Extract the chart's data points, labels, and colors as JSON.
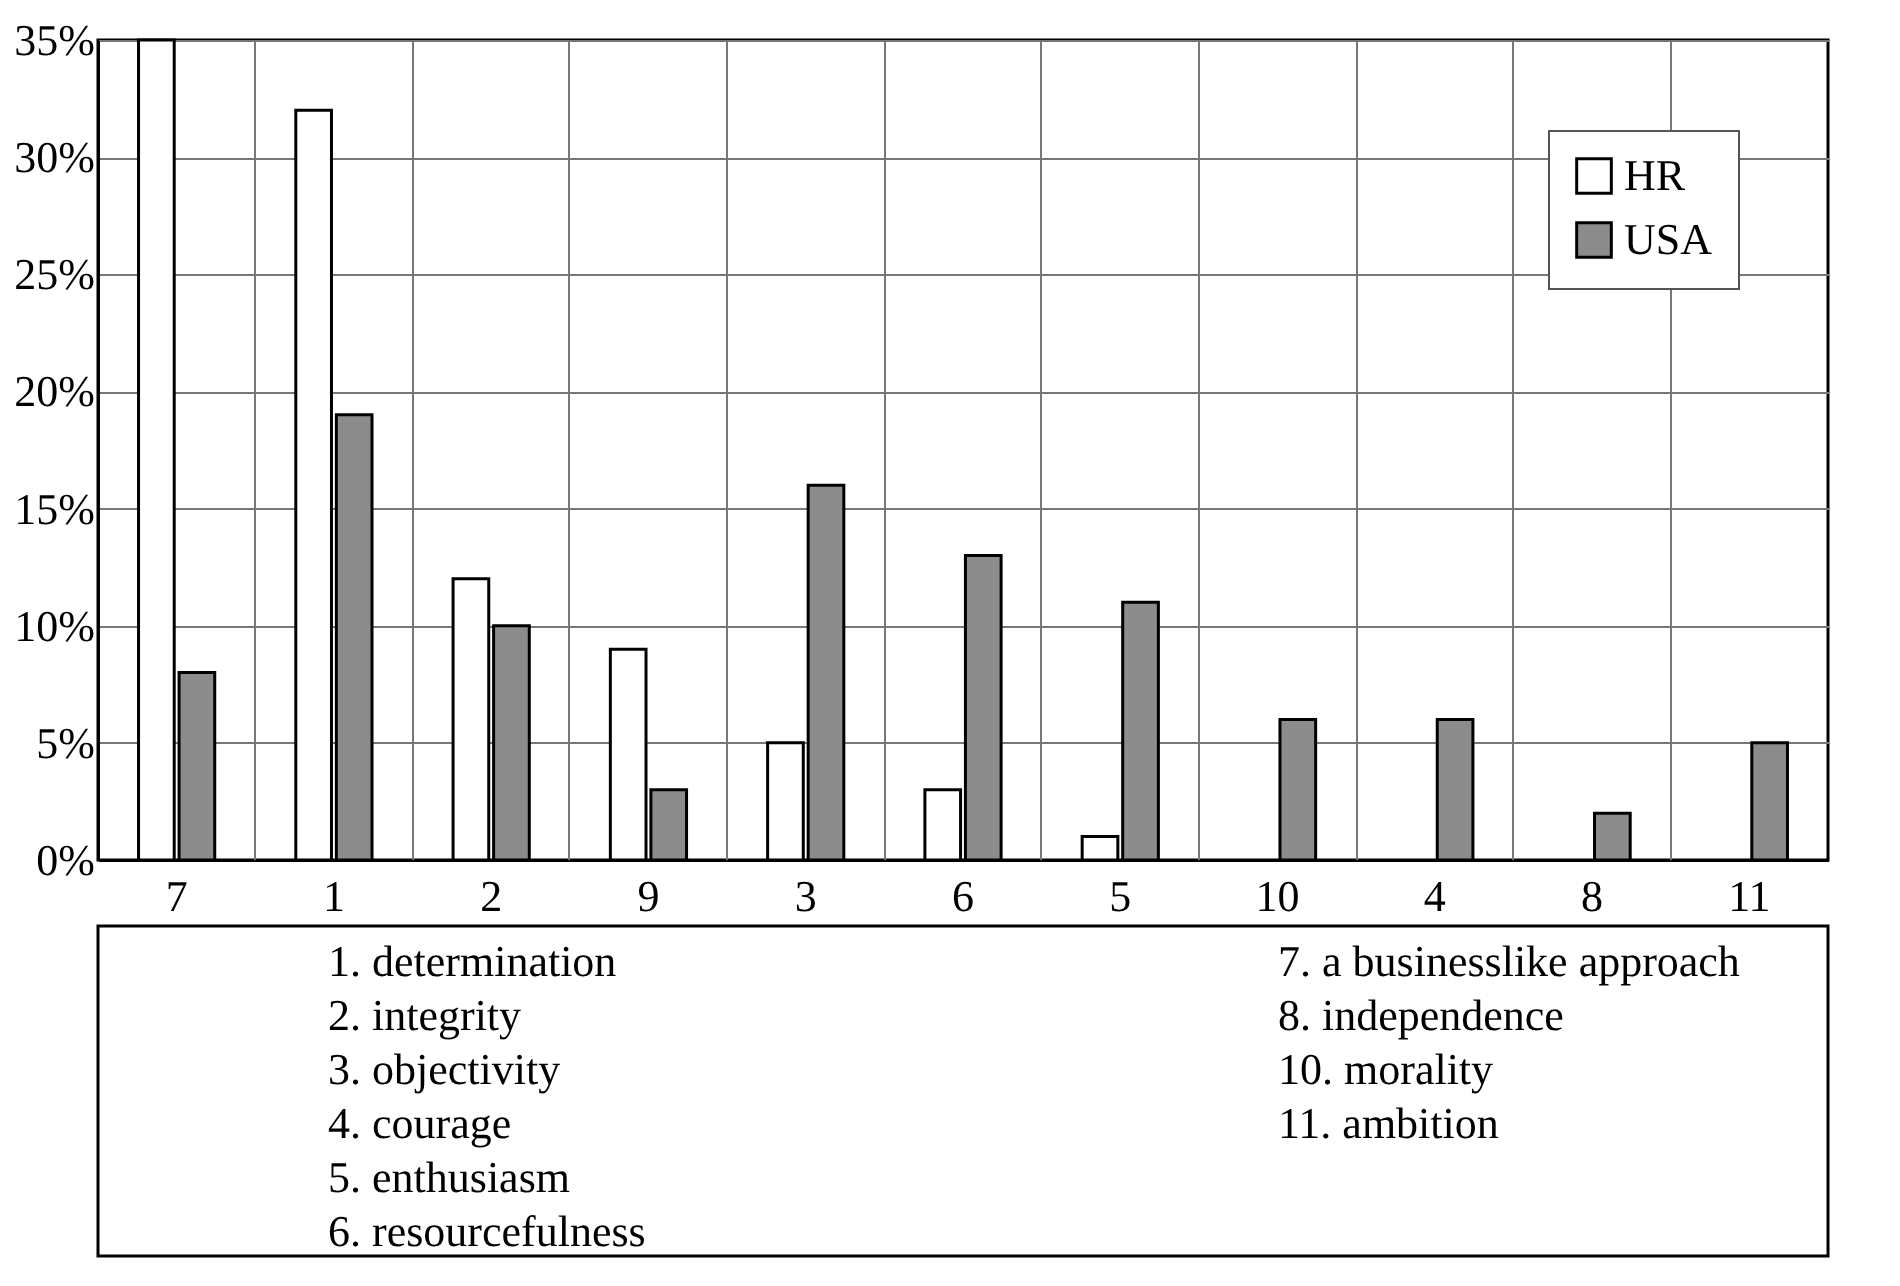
{
  "chart_data": {
    "type": "bar",
    "categories": [
      "7",
      "1",
      "2",
      "9",
      "3",
      "6",
      "5",
      "10",
      "4",
      "8",
      "11"
    ],
    "series": [
      {
        "name": "HR",
        "color": "#ffffff",
        "values": [
          35,
          32,
          12,
          9,
          5,
          3,
          1,
          null,
          null,
          null,
          null
        ]
      },
      {
        "name": "USA",
        "color": "#8c8c8c",
        "values": [
          8,
          19,
          10,
          3,
          16,
          13,
          11,
          6,
          6,
          2,
          5
        ]
      }
    ],
    "ylim": [
      0,
      35
    ],
    "yticks": [
      {
        "value": 0,
        "label": "0%"
      },
      {
        "value": 5,
        "label": "5%"
      },
      {
        "value": 10,
        "label": "10%"
      },
      {
        "value": 15,
        "label": "15%"
      },
      {
        "value": 20,
        "label": "20%"
      },
      {
        "value": 25,
        "label": "25%"
      },
      {
        "value": 30,
        "label": "30%"
      },
      {
        "value": 35,
        "label": "35%"
      }
    ],
    "grid": true,
    "legend": "top right",
    "annotations": [
      "1. determination",
      "2. integrity",
      "3. objectivity",
      "4. courage",
      "5. enthusiasm",
      "6. resourcefulness",
      "7. a businesslike approach",
      "8. independence",
      "10. morality",
      "11. ambition"
    ]
  }
}
